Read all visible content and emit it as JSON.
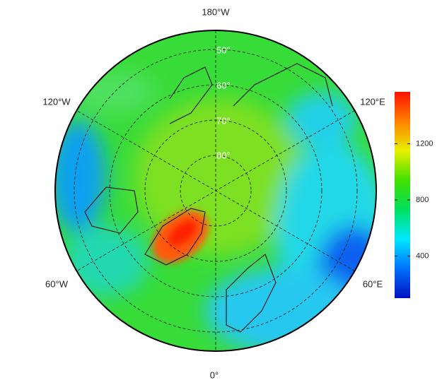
{
  "map": {
    "longitude_labels": [
      "180°W",
      "120°E",
      "120°W",
      "60°W",
      "60°E",
      "0°"
    ],
    "latitude_labels": [
      "50°",
      "60°",
      "70°",
      "80°"
    ],
    "colorbar": {
      "lim": [
        100,
        1570
      ],
      "ticks": [
        400,
        800,
        1200
      ],
      "colors": [
        "#0010c0",
        "#0070ff",
        "#00e8ff",
        "#00e060",
        "#40e000",
        "#e8f000",
        "#ff8000",
        "#ff1000"
      ]
    }
  }
}
